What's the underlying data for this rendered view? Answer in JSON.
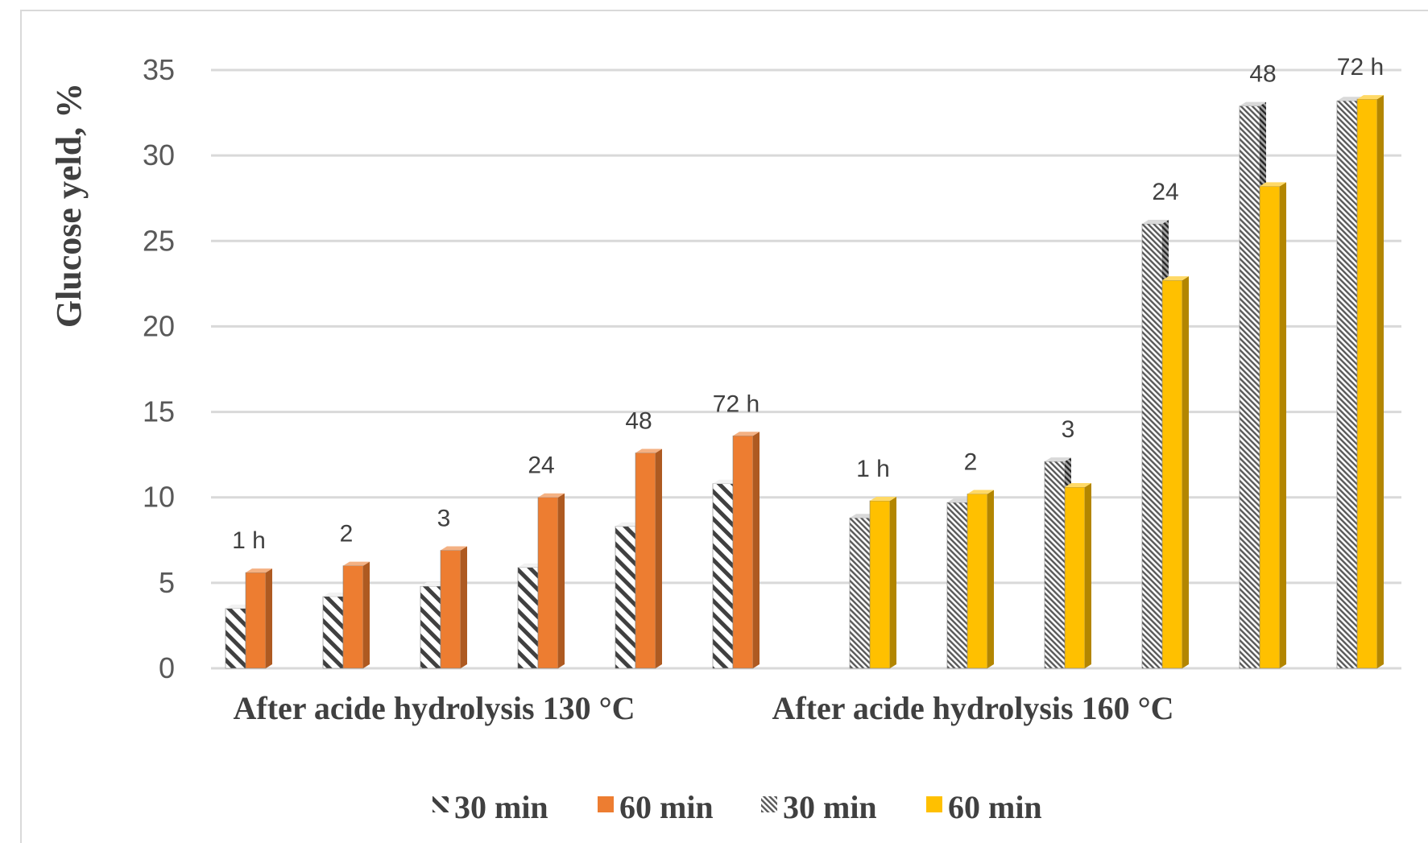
{
  "chart_data": {
    "type": "bar",
    "ylabel": "Glucose yeld, %",
    "ylim": [
      0,
      35
    ],
    "yticks": [
      0,
      5,
      10,
      15,
      20,
      25,
      30,
      35
    ],
    "grid": true,
    "legend_position": "bottom",
    "style": "3d-clustered-bar",
    "groups": [
      {
        "name": "After acide hydrolysis 130 °C",
        "times": [
          "1 h",
          "2",
          "3",
          "24",
          "48",
          "72 h"
        ],
        "series": [
          {
            "name": "30 min",
            "pattern": "wide-diagonal-hatch",
            "color": "#404040",
            "values": [
              3.5,
              4.2,
              4.8,
              5.9,
              8.3,
              10.8
            ]
          },
          {
            "name": "60 min",
            "pattern": "solid",
            "color": "#ed7d31",
            "values": [
              5.6,
              6.0,
              6.9,
              10.0,
              12.6,
              13.6
            ]
          }
        ]
      },
      {
        "name": "After acide hydrolysis 160 °C",
        "times": [
          "1 h",
          "2",
          "3",
          "24",
          "48",
          "72 h"
        ],
        "series": [
          {
            "name": "30 min",
            "pattern": "fine-diagonal-hatch",
            "color": "#595959",
            "values": [
              8.8,
              9.7,
              12.1,
              26.0,
              32.9,
              33.2
            ]
          },
          {
            "name": "60 min",
            "pattern": "solid",
            "color": "#ffc000",
            "values": [
              9.8,
              10.2,
              10.6,
              22.7,
              28.2,
              33.3
            ]
          }
        ]
      }
    ]
  },
  "legend": [
    {
      "label": "30 min",
      "swatch": "wide-diagonal-hatch"
    },
    {
      "label": "60 min",
      "swatch": "orange",
      "color": "#ed7d31"
    },
    {
      "label": "30 min",
      "swatch": "fine-diagonal-hatch"
    },
    {
      "label": "60 min",
      "swatch": "gold",
      "color": "#ffc000"
    }
  ]
}
